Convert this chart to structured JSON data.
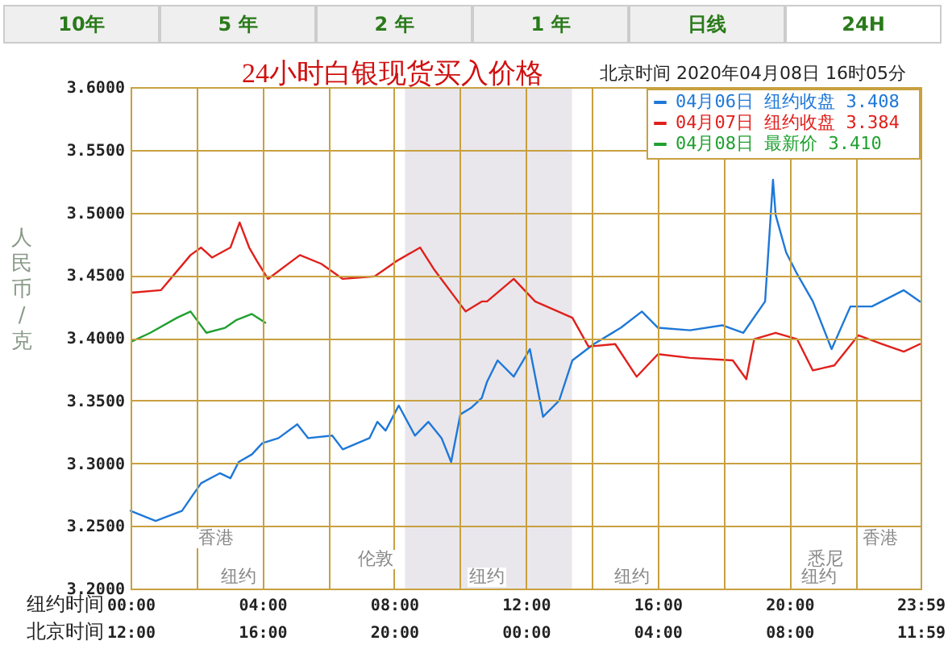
{
  "chart_data": {
    "type": "line",
    "title": "24小时白银现货买入价格",
    "subtitle": "北京时间  2020年04月08日 16时05分",
    "xlabel": "纽约时间",
    "x2label": "北京时间",
    "ylabel": "人民币/克",
    "annotations": [
      "10年",
      "5 年",
      "2 年",
      "1 年",
      "日线",
      "24H",
      "香港",
      "伦敦",
      "纽约",
      "纽约",
      "纽约",
      "香港",
      "悉尼",
      "纽约"
    ],
    "xlim": [
      0,
      23.98
    ],
    "xticks": [
      {
        "value": 0,
        "label": "00:00"
      },
      {
        "value": 2,
        "label": null
      },
      {
        "value": 4,
        "label": "04:00"
      },
      {
        "value": 6,
        "label": null
      },
      {
        "value": 8,
        "label": "08:00"
      },
      {
        "value": 10,
        "label": null
      },
      {
        "value": 12,
        "label": "12:00"
      },
      {
        "value": 14,
        "label": null
      },
      {
        "value": 16,
        "label": "16:00"
      },
      {
        "value": 18,
        "label": null
      },
      {
        "value": 20,
        "label": "20:00"
      },
      {
        "value": 22,
        "label": null
      },
      {
        "value": 23.98,
        "label": "23:59"
      }
    ],
    "x2lim": [
      "2020-04-08T12:00",
      "2020-04-09T11:59"
    ],
    "x2ticks": [
      {
        "value": "2020-04-08T12:00",
        "label": "12:00"
      },
      {
        "value": "2020-04-08T16:00",
        "label": "16:00"
      },
      {
        "value": "2020-04-08T20:00",
        "label": "20:00"
      },
      {
        "value": "2020-04-09T00:00",
        "label": "00:00"
      },
      {
        "value": "2020-04-09T04:00",
        "label": "04:00"
      },
      {
        "value": "2020-04-09T08:00",
        "label": "08:00"
      },
      {
        "value": "2020-04-09T11:59",
        "label": "11:59"
      }
    ],
    "ylim": [
      3.2,
      3.6
    ],
    "yticks": [
      {
        "value": 3.2,
        "label": "3.2000"
      },
      {
        "value": 3.25,
        "label": "3.2500"
      },
      {
        "value": 3.3,
        "label": "3.3000"
      },
      {
        "value": 3.35,
        "label": "3.3500"
      },
      {
        "value": 3.4,
        "label": "3.4000"
      },
      {
        "value": 3.45,
        "label": "3.4500"
      },
      {
        "value": 3.5,
        "label": "3.5000"
      },
      {
        "value": 3.55,
        "label": "3.5500"
      },
      {
        "value": 3.6,
        "label": "3.6000"
      }
    ],
    "grid": true,
    "legend": "top right",
    "bands": [
      {
        "axis": "x",
        "from": 8.33,
        "to": 13.4,
        "color": "#e9e7ec"
      }
    ],
    "series": [
      {
        "name": "04月06日  纽约收盘 3.408",
        "color": "#1e78d8",
        "x": [
          0,
          0.76,
          1.56,
          1.9,
          2.14,
          2.71,
          3.03,
          3.28,
          3.68,
          4.0,
          4.49,
          5.06,
          5.39,
          6.12,
          6.44,
          7.25,
          7.49,
          7.74,
          8.14,
          8.63,
          9.04,
          9.44,
          9.73,
          10.01,
          10.33,
          10.66,
          10.82,
          11.14,
          11.63,
          12.12,
          12.52,
          13.01,
          13.41,
          14.06,
          14.88,
          15.52,
          16.01,
          16.98,
          17.96,
          18.6,
          19.26,
          19.5,
          19.58,
          19.9,
          20.23,
          20.71,
          21.28,
          21.85,
          22.5,
          23.47,
          23.96
        ],
        "values": [
          3.262,
          3.254,
          3.262,
          3.275,
          3.284,
          3.292,
          3.288,
          3.301,
          3.307,
          3.316,
          3.32,
          3.331,
          3.32,
          3.322,
          3.311,
          3.32,
          3.333,
          3.326,
          3.346,
          3.322,
          3.333,
          3.32,
          3.301,
          3.339,
          3.344,
          3.352,
          3.365,
          3.382,
          3.369,
          3.391,
          3.337,
          3.35,
          3.382,
          3.395,
          3.408,
          3.421,
          3.408,
          3.406,
          3.41,
          3.404,
          3.429,
          3.526,
          3.498,
          3.468,
          3.451,
          3.429,
          3.391,
          3.425,
          3.425,
          3.438,
          3.429
        ]
      },
      {
        "name": "04月07日  纽约收盘 3.384",
        "color": "#e0201c",
        "x": [
          0.03,
          0.92,
          1.82,
          2.14,
          2.47,
          3.03,
          3.31,
          3.6,
          3.84,
          4.17,
          5.14,
          5.79,
          6.44,
          7.41,
          8.06,
          8.79,
          9.2,
          10.17,
          10.66,
          10.82,
          11.63,
          12.28,
          13.41,
          13.9,
          14.71,
          15.36,
          16.01,
          16.98,
          18.28,
          18.69,
          18.93,
          19.58,
          20.23,
          20.71,
          21.36,
          22.09,
          22.82,
          23.47,
          23.96
        ],
        "values": [
          3.436,
          3.438,
          3.466,
          3.472,
          3.464,
          3.472,
          3.492,
          3.472,
          3.461,
          3.447,
          3.466,
          3.459,
          3.447,
          3.449,
          3.461,
          3.472,
          3.455,
          3.421,
          3.429,
          3.429,
          3.447,
          3.429,
          3.416,
          3.393,
          3.395,
          3.369,
          3.387,
          3.384,
          3.382,
          3.367,
          3.399,
          3.404,
          3.399,
          3.374,
          3.378,
          3.402,
          3.395,
          3.389,
          3.395
        ]
      },
      {
        "name": "04月08日    最新价 3.410",
        "color": "#20a030",
        "x": [
          0.03,
          0.6,
          1.41,
          1.82,
          2.3,
          2.87,
          3.2,
          3.68,
          4.09
        ],
        "values": [
          3.397,
          3.404,
          3.416,
          3.421,
          3.404,
          3.408,
          3.414,
          3.419,
          3.412
        ]
      }
    ]
  }
}
